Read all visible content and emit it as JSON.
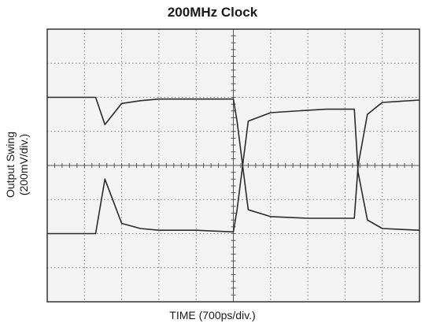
{
  "chart_data": {
    "type": "line",
    "title": "200MHz Clock",
    "xlabel": "TIME (700ps/div.)",
    "ylabel": "Output Swing\n(200mV/div.)",
    "x_divisions": 10,
    "y_divisions": 8,
    "grid": true,
    "xlim": [
      0,
      10
    ],
    "ylim": [
      0,
      8
    ],
    "series": [
      {
        "x": [
          0,
          1.3,
          1.55,
          2.0,
          2.5,
          3.0,
          4.0,
          5.0,
          5.1,
          5.4,
          6.0,
          7.0,
          7.5,
          8.25,
          8.35,
          8.6,
          9.0,
          10.0
        ],
        "y": [
          6.0,
          6.0,
          5.2,
          5.82,
          5.9,
          5.95,
          5.95,
          5.95,
          5.3,
          2.7,
          2.5,
          2.45,
          2.45,
          2.45,
          4.0,
          5.5,
          5.85,
          5.92
        ]
      },
      {
        "x": [
          0,
          1.3,
          1.55,
          2.0,
          2.5,
          3.0,
          4.0,
          5.0,
          5.1,
          5.4,
          6.0,
          7.0,
          7.5,
          8.25,
          8.35,
          8.6,
          9.0,
          10.0
        ],
        "y": [
          2.0,
          2.0,
          3.6,
          2.3,
          2.15,
          2.1,
          2.1,
          2.05,
          2.7,
          5.3,
          5.55,
          5.62,
          5.65,
          5.65,
          3.8,
          2.4,
          2.15,
          2.1
        ]
      }
    ]
  }
}
